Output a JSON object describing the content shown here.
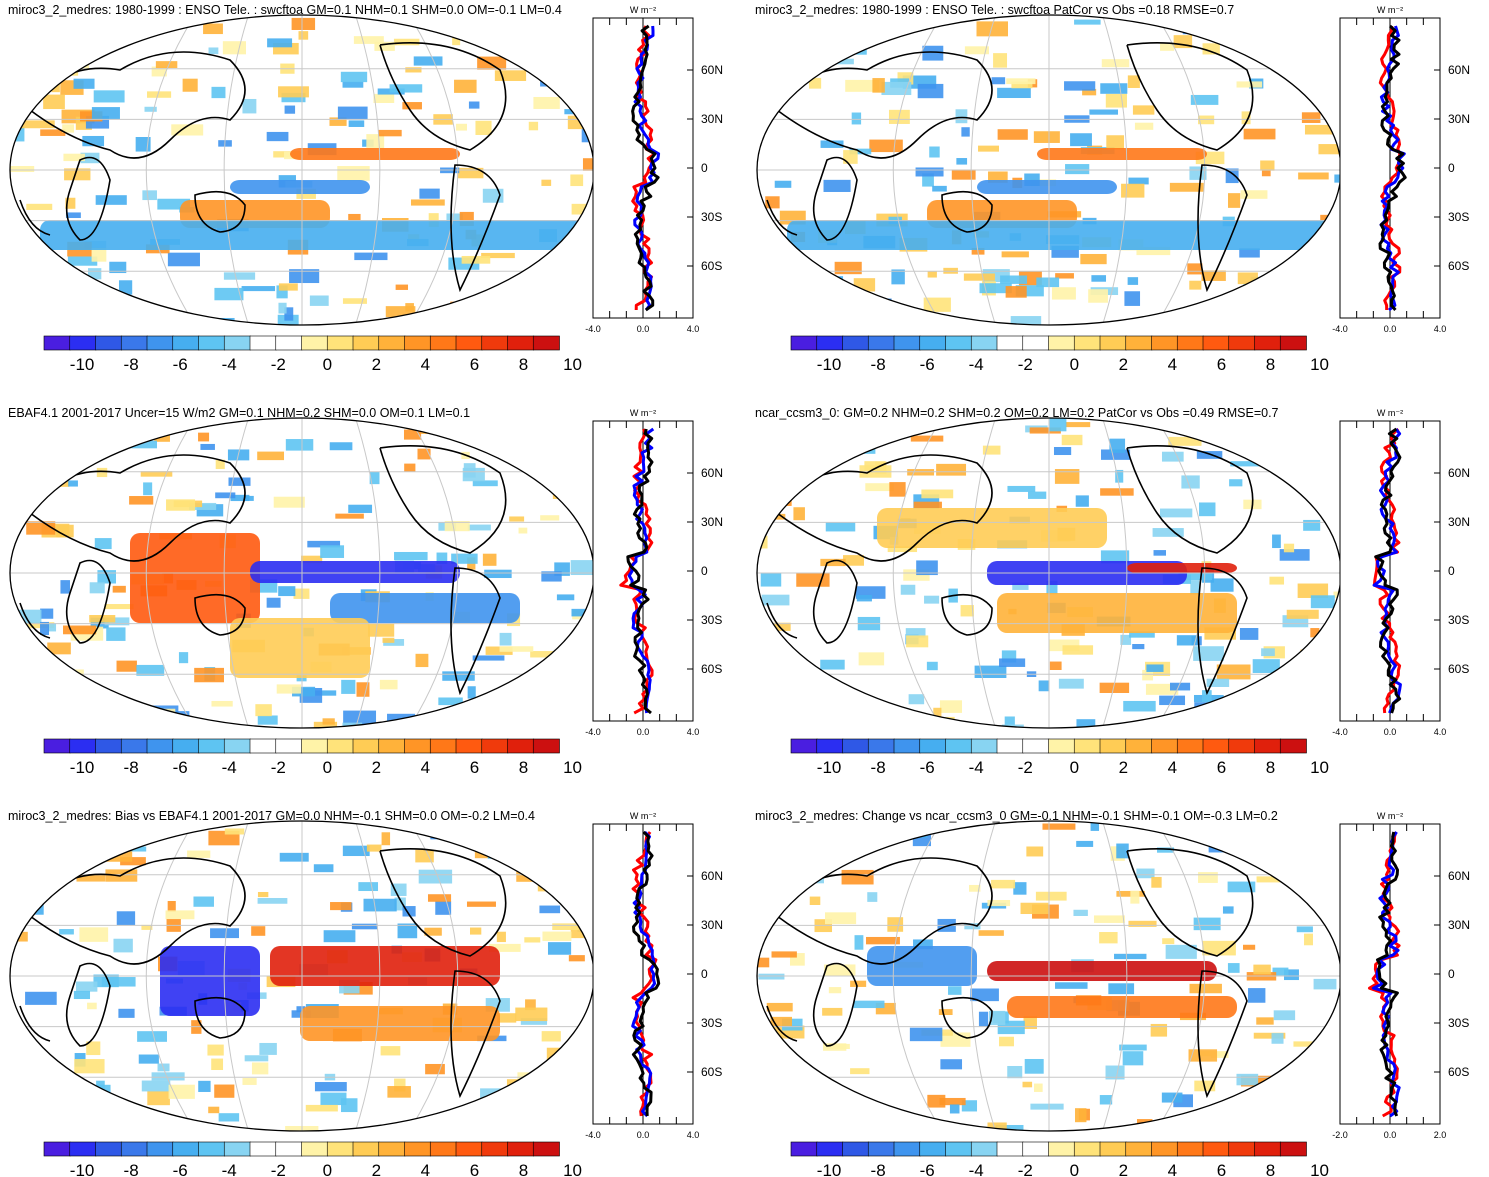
{
  "panels": [
    {
      "title": "miroc3_2_medres: 1980-1999 : ENSO Tele. : swcftoa GM=0.1 NHM=0.1 SHM=0.0 OM=-0.1 LM=0.4",
      "zonal_units": "W m⁻²",
      "lat_labels": [
        "60N",
        "30N",
        "0",
        "30S",
        "60S"
      ],
      "xtick_labels": [
        "-4.0",
        "0.0",
        "4.0"
      ],
      "colorbar_labels": [
        "-10",
        "-8",
        "-6",
        "-4",
        "-2",
        "0",
        "2",
        "4",
        "6",
        "8",
        "10"
      ]
    },
    {
      "title": "miroc3_2_medres: 1980-1999 : ENSO Tele. : swcftoa PatCor vs Obs =0.18 RMSE=0.7",
      "zonal_units": "W m⁻²",
      "lat_labels": [
        "60N",
        "30N",
        "0",
        "30S",
        "60S"
      ],
      "xtick_labels": [
        "-4.0",
        "0.0",
        "4.0"
      ],
      "colorbar_labels": [
        "-10",
        "-8",
        "-6",
        "-4",
        "-2",
        "0",
        "2",
        "4",
        "6",
        "8",
        "10"
      ]
    },
    {
      "title": "EBAF4.1 2001-2017 Uncer=15 W/m2 GM=0.1 NHM=0.2 SHM=0.0 OM=0.1 LM=0.1",
      "zonal_units": "W m⁻²",
      "lat_labels": [
        "60N",
        "30N",
        "0",
        "30S",
        "60S"
      ],
      "xtick_labels": [
        "-4.0",
        "0.0",
        "4.0"
      ],
      "colorbar_labels": [
        "-10",
        "-8",
        "-6",
        "-4",
        "-2",
        "0",
        "2",
        "4",
        "6",
        "8",
        "10"
      ]
    },
    {
      "title": "ncar_ccsm3_0: GM=0.2 NHM=0.2 SHM=0.2 OM=0.2 LM=0.2 PatCor vs Obs =0.49 RMSE=0.7",
      "zonal_units": "W m⁻²",
      "lat_labels": [
        "60N",
        "30N",
        "0",
        "30S",
        "60S"
      ],
      "xtick_labels": [
        "-4.0",
        "0.0",
        "4.0"
      ],
      "colorbar_labels": [
        "-10",
        "-8",
        "-6",
        "-4",
        "-2",
        "0",
        "2",
        "4",
        "6",
        "8",
        "10"
      ]
    },
    {
      "title": "miroc3_2_medres: Bias vs EBAF4.1 2001-2017 GM=0.0 NHM=-0.1 SHM=0.0 OM=-0.2 LM=0.4",
      "zonal_units": "W m⁻²",
      "lat_labels": [
        "60N",
        "30N",
        "0",
        "30S",
        "60S"
      ],
      "xtick_labels": [
        "-4.0",
        "0.0",
        "4.0"
      ],
      "colorbar_labels": [
        "-10",
        "-8",
        "-6",
        "-4",
        "-2",
        "0",
        "2",
        "4",
        "6",
        "8",
        "10"
      ]
    },
    {
      "title": "miroc3_2_medres: Change vs ncar_ccsm3_0 GM=-0.1 NHM=-0.1 SHM=-0.1 OM=-0.3 LM=0.2",
      "zonal_units": "W m⁻²",
      "lat_labels": [
        "60N",
        "30N",
        "0",
        "30S",
        "60S"
      ],
      "xtick_labels": [
        "-2.0",
        "0.0",
        "2.0"
      ],
      "colorbar_labels": [
        "-10",
        "-8",
        "-6",
        "-4",
        "-2",
        "0",
        "2",
        "4",
        "6",
        "8",
        "10"
      ]
    }
  ],
  "colorbar_colors": [
    "#4a1ee0",
    "#2b2ef2",
    "#2f58e6",
    "#3a78ea",
    "#3f94ee",
    "#46aef0",
    "#5ec4f2",
    "#88d4f2",
    "#ffffff",
    "#ffffff",
    "#fff3a8",
    "#ffe37a",
    "#ffcc55",
    "#ffb23a",
    "#ff9526",
    "#ff7818",
    "#ff5a10",
    "#f03a0c",
    "#e0200c",
    "#cc1010"
  ],
  "line_colors": {
    "model": "#0000ff",
    "obs": "#ff0000",
    "other": "#000000"
  }
}
